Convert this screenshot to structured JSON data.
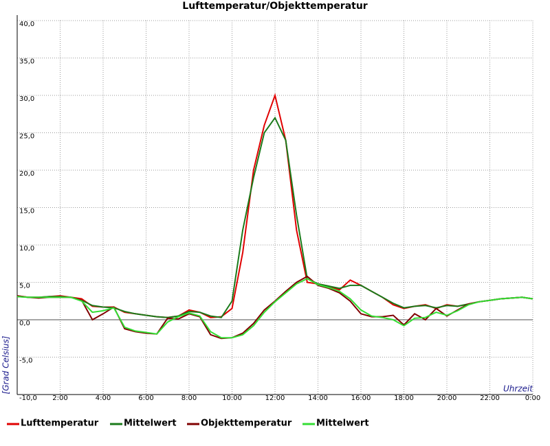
{
  "chart_data": {
    "type": "line",
    "title": "Lufttemperatur/Objekttemperatur",
    "y_label": "[Grad Celsius]",
    "x_label": "Uhrzeit",
    "x": [
      0,
      0.5,
      1,
      1.5,
      2,
      2.5,
      3,
      3.5,
      4,
      4.5,
      5,
      5.5,
      6,
      6.5,
      7,
      7.5,
      8,
      8.5,
      9,
      9.5,
      10,
      10.5,
      11,
      11.5,
      12,
      12.5,
      13,
      13.5,
      14,
      14.5,
      15,
      15.5,
      16,
      16.5,
      17,
      17.5,
      18,
      18.5,
      19,
      19.5,
      20,
      20.5,
      21,
      21.5,
      22,
      22.5,
      23,
      23.5,
      24
    ],
    "series": [
      {
        "name": "Lufttemperatur",
        "color": "#e00000",
        "values": [
          3.2,
          3.0,
          3.0,
          3.1,
          3.2,
          3.0,
          2.8,
          1.8,
          1.7,
          1.7,
          1.0,
          0.8,
          0.6,
          0.4,
          0.3,
          0.5,
          1.3,
          1.0,
          0.3,
          0.4,
          1.5,
          9.0,
          20.0,
          26.0,
          30.0,
          24.0,
          12.0,
          5.0,
          4.8,
          4.5,
          4.0,
          5.3,
          4.6,
          3.8,
          3.0,
          2.0,
          1.5,
          1.8,
          2.0,
          1.5,
          2.0,
          1.8,
          2.1,
          2.4,
          2.6,
          2.8,
          2.9,
          3.0,
          2.8
        ]
      },
      {
        "name": "Mittelwert",
        "color": "#1a7a1a",
        "values": [
          3.1,
          3.0,
          3.0,
          3.1,
          3.1,
          3.0,
          2.6,
          1.9,
          1.7,
          1.6,
          1.1,
          0.8,
          0.6,
          0.4,
          0.3,
          0.5,
          1.1,
          1.0,
          0.5,
          0.3,
          2.5,
          12.0,
          19.0,
          25.0,
          27.0,
          24.0,
          14.0,
          5.5,
          4.8,
          4.5,
          4.2,
          4.6,
          4.6,
          3.8,
          3.0,
          2.2,
          1.6,
          1.8,
          1.9,
          1.6,
          1.9,
          1.8,
          2.1,
          2.4,
          2.6,
          2.8,
          2.9,
          3.0,
          2.8
        ]
      },
      {
        "name": "Objekttemperatur",
        "color": "#800000",
        "values": [
          3.2,
          3.0,
          2.9,
          3.0,
          3.0,
          3.0,
          2.6,
          0.0,
          0.8,
          1.7,
          -1.2,
          -1.6,
          -1.8,
          -1.9,
          0.2,
          0.1,
          0.8,
          0.4,
          -2.0,
          -2.5,
          -2.4,
          -1.8,
          -0.5,
          1.3,
          2.5,
          3.8,
          5.0,
          5.8,
          4.6,
          4.2,
          3.6,
          2.5,
          0.8,
          0.4,
          0.4,
          0.6,
          -0.7,
          0.8,
          0.0,
          1.5,
          0.5,
          1.3,
          2.1,
          2.4,
          2.6,
          2.8,
          2.9,
          3.0,
          2.8
        ]
      },
      {
        "name": "Mittelwert",
        "color": "#33dd33",
        "values": [
          3.1,
          3.0,
          3.0,
          3.0,
          3.0,
          3.0,
          2.5,
          1.0,
          1.2,
          1.6,
          -1.0,
          -1.5,
          -1.7,
          -1.9,
          -0.3,
          0.4,
          0.9,
          0.5,
          -1.6,
          -2.4,
          -2.4,
          -2.0,
          -0.8,
          1.0,
          2.4,
          3.6,
          4.8,
          5.5,
          4.7,
          4.3,
          3.8,
          2.8,
          1.3,
          0.5,
          0.3,
          0.0,
          -0.8,
          0.2,
          0.3,
          1.0,
          0.6,
          1.2,
          2.0,
          2.4,
          2.6,
          2.8,
          2.9,
          3.0,
          2.8
        ]
      }
    ],
    "xlim": [
      0,
      24
    ],
    "xticks": [
      {
        "value": 2,
        "label": "2:00"
      },
      {
        "value": 4,
        "label": "4:00"
      },
      {
        "value": 6,
        "label": "6:00"
      },
      {
        "value": 8,
        "label": "8:00"
      },
      {
        "value": 10,
        "label": "10:00"
      },
      {
        "value": 12,
        "label": "12:00"
      },
      {
        "value": 14,
        "label": "14:00"
      },
      {
        "value": 16,
        "label": "16:00"
      },
      {
        "value": 18,
        "label": "18:00"
      },
      {
        "value": 20,
        "label": "20:00"
      },
      {
        "value": 22,
        "label": "22:00"
      },
      {
        "value": 24,
        "label": "0:00"
      }
    ],
    "ylim": [
      -10,
      40
    ],
    "yticks": [
      {
        "value": -10,
        "label": "-10,0"
      },
      {
        "value": -5,
        "label": "-5,0"
      },
      {
        "value": 0,
        "label": "0,0"
      },
      {
        "value": 5,
        "label": "5,0"
      },
      {
        "value": 10,
        "label": "10,0"
      },
      {
        "value": 15,
        "label": "15,0"
      },
      {
        "value": 20,
        "label": "20,0"
      },
      {
        "value": 25,
        "label": "25,0"
      },
      {
        "value": 30,
        "label": "30,0"
      },
      {
        "value": 35,
        "label": "35,0"
      },
      {
        "value": 40,
        "label": "40,0"
      }
    ],
    "grid": true
  }
}
